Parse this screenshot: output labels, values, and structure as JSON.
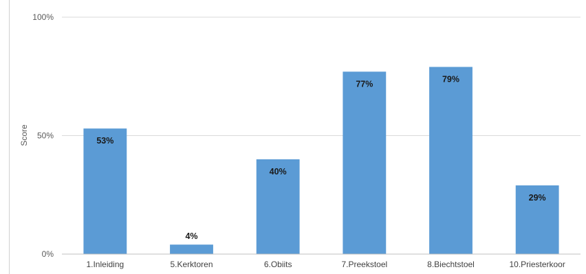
{
  "chart_data": {
    "type": "bar",
    "title": "",
    "xlabel": "",
    "ylabel": "Score",
    "ylim": [
      0,
      100
    ],
    "yticks": [
      {
        "value": 0,
        "label": "0%"
      },
      {
        "value": 50,
        "label": "50%"
      },
      {
        "value": 100,
        "label": "100%"
      }
    ],
    "grid": true,
    "categories": [
      "1.Inleiding",
      "5.Kerktoren",
      "6.Obiits",
      "7.Preekstoel",
      "8.Biechtstoel",
      "10.Priesterkoor"
    ],
    "values": [
      53,
      4,
      40,
      77,
      79,
      29
    ],
    "data_labels": [
      "53%",
      "4%",
      "40%",
      "77%",
      "79%",
      "29%"
    ],
    "colors": {
      "bar": "#5b9bd5",
      "grid": "#d9d9d9",
      "axis": "#bfbfbf"
    }
  }
}
